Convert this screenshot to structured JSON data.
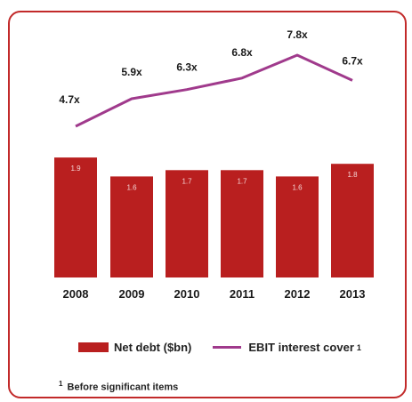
{
  "chart_data": {
    "type": "bar",
    "categories": [
      "2008",
      "2009",
      "2010",
      "2011",
      "2012",
      "2013"
    ],
    "series": [
      {
        "name": "Net debt ($bn)",
        "values": [
          1.9,
          1.6,
          1.7,
          1.7,
          1.6,
          1.8
        ]
      },
      {
        "name": "EBIT interest cover",
        "values": [
          4.7,
          5.9,
          6.3,
          6.8,
          7.8,
          6.7
        ]
      }
    ],
    "bar_labels": [
      "1.9",
      "1.6",
      "1.7",
      "1.7",
      "1.6",
      "1.8"
    ],
    "line_labels": [
      "4.7x",
      "5.9x",
      "6.3x",
      "6.8x",
      "7.8x",
      "6.7x"
    ],
    "colors": {
      "bar": "#b91f1f",
      "line": "#a03a8c",
      "frame": "#c22a2a"
    }
  },
  "legend": {
    "bar_label": "Net debt ($bn)",
    "line_label": "EBIT interest cover",
    "line_marker": "1"
  },
  "footnote": {
    "marker": "1",
    "text": "Before significant items"
  }
}
